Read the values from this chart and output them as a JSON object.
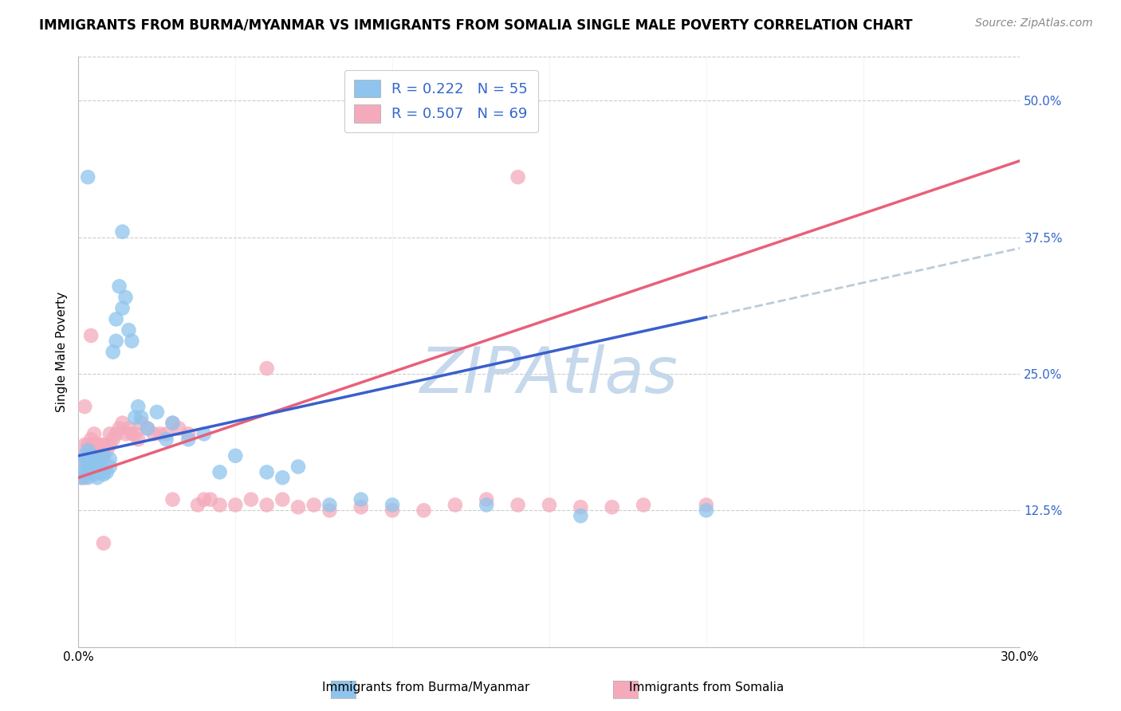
{
  "title": "IMMIGRANTS FROM BURMA/MYANMAR VS IMMIGRANTS FROM SOMALIA SINGLE MALE POVERTY CORRELATION CHART",
  "source": "Source: ZipAtlas.com",
  "ylabel": "Single Male Poverty",
  "xlim": [
    0.0,
    0.3
  ],
  "ylim": [
    0.0,
    0.54
  ],
  "yticks": [
    0.0,
    0.125,
    0.25,
    0.375,
    0.5
  ],
  "ytick_labels": [
    "",
    "12.5%",
    "25.0%",
    "37.5%",
    "50.0%"
  ],
  "xticks": [
    0.0,
    0.05,
    0.1,
    0.15,
    0.2,
    0.25,
    0.3
  ],
  "xtick_labels": [
    "0.0%",
    "",
    "",
    "",
    "",
    "",
    "30.0%"
  ],
  "R_burma": 0.222,
  "N_burma": 55,
  "R_somalia": 0.507,
  "N_somalia": 69,
  "color_burma": "#8EC4ED",
  "color_somalia": "#F4AABB",
  "color_burma_line": "#3A5FCD",
  "color_somalia_line": "#E8607A",
  "color_burma_dashed": "#AABFCF",
  "background_color": "#ffffff",
  "grid_color": "#cccccc",
  "label_burma": "Immigrants from Burma/Myanmar",
  "label_somalia": "Immigrants from Somalia",
  "watermark": "ZIPAtlas",
  "watermark_color": "#C5D8EC",
  "title_fontsize": 12,
  "source_fontsize": 10,
  "axis_label_fontsize": 11,
  "tick_fontsize": 11,
  "legend_fontsize": 13,
  "burma_x": [
    0.001,
    0.002,
    0.002,
    0.002,
    0.003,
    0.003,
    0.003,
    0.003,
    0.004,
    0.004,
    0.004,
    0.005,
    0.005,
    0.005,
    0.006,
    0.006,
    0.006,
    0.007,
    0.007,
    0.008,
    0.008,
    0.008,
    0.009,
    0.01,
    0.01,
    0.011,
    0.012,
    0.012,
    0.013,
    0.014,
    0.015,
    0.016,
    0.017,
    0.018,
    0.019,
    0.02,
    0.022,
    0.025,
    0.028,
    0.03,
    0.035,
    0.04,
    0.045,
    0.05,
    0.06,
    0.065,
    0.07,
    0.08,
    0.09,
    0.1,
    0.13,
    0.16,
    0.2,
    0.014,
    0.003
  ],
  "burma_y": [
    0.155,
    0.16,
    0.168,
    0.175,
    0.155,
    0.165,
    0.172,
    0.18,
    0.16,
    0.17,
    0.175,
    0.158,
    0.162,
    0.17,
    0.155,
    0.165,
    0.172,
    0.16,
    0.17,
    0.158,
    0.162,
    0.175,
    0.16,
    0.165,
    0.172,
    0.27,
    0.28,
    0.3,
    0.33,
    0.31,
    0.32,
    0.29,
    0.28,
    0.21,
    0.22,
    0.21,
    0.2,
    0.215,
    0.19,
    0.205,
    0.19,
    0.195,
    0.16,
    0.175,
    0.16,
    0.155,
    0.165,
    0.13,
    0.135,
    0.13,
    0.13,
    0.12,
    0.125,
    0.38,
    0.43
  ],
  "somalia_x": [
    0.001,
    0.001,
    0.002,
    0.002,
    0.002,
    0.003,
    0.003,
    0.003,
    0.004,
    0.004,
    0.004,
    0.005,
    0.005,
    0.005,
    0.006,
    0.006,
    0.006,
    0.007,
    0.007,
    0.008,
    0.008,
    0.009,
    0.01,
    0.01,
    0.011,
    0.012,
    0.013,
    0.014,
    0.015,
    0.016,
    0.017,
    0.018,
    0.019,
    0.02,
    0.022,
    0.024,
    0.026,
    0.028,
    0.03,
    0.032,
    0.035,
    0.038,
    0.04,
    0.042,
    0.045,
    0.05,
    0.055,
    0.06,
    0.065,
    0.07,
    0.075,
    0.08,
    0.09,
    0.1,
    0.11,
    0.12,
    0.13,
    0.14,
    0.15,
    0.16,
    0.17,
    0.18,
    0.2,
    0.14,
    0.06,
    0.03,
    0.008,
    0.004,
    0.002
  ],
  "somalia_y": [
    0.175,
    0.155,
    0.185,
    0.165,
    0.155,
    0.175,
    0.185,
    0.165,
    0.18,
    0.19,
    0.17,
    0.175,
    0.185,
    0.195,
    0.175,
    0.185,
    0.165,
    0.18,
    0.185,
    0.175,
    0.185,
    0.18,
    0.185,
    0.195,
    0.19,
    0.195,
    0.2,
    0.205,
    0.195,
    0.2,
    0.195,
    0.195,
    0.19,
    0.205,
    0.2,
    0.195,
    0.195,
    0.195,
    0.205,
    0.2,
    0.195,
    0.13,
    0.135,
    0.135,
    0.13,
    0.13,
    0.135,
    0.13,
    0.135,
    0.128,
    0.13,
    0.125,
    0.128,
    0.125,
    0.125,
    0.13,
    0.135,
    0.13,
    0.13,
    0.128,
    0.128,
    0.13,
    0.13,
    0.43,
    0.255,
    0.135,
    0.095,
    0.285,
    0.22
  ],
  "burma_reg": [
    0.175,
    0.365
  ],
  "somalia_reg": [
    0.155,
    0.445
  ],
  "burma_dash_reg": [
    0.175,
    0.365
  ]
}
